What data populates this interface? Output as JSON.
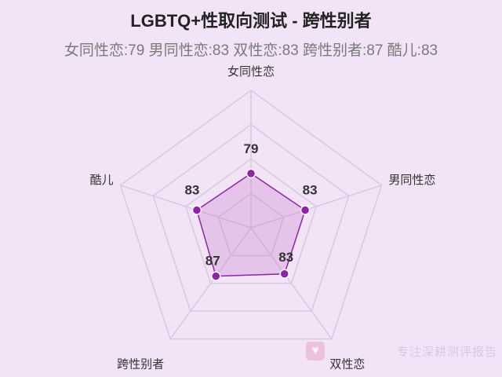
{
  "chart_data": {
    "type": "radar",
    "title": "LGBTQ+性取向测试 - 跨性别者",
    "subtitle": "女同性恋:79 男同性恋:83 双性恋:83 跨性别者:87 酷儿:83",
    "categories": [
      "女同性恋",
      "男同性恋",
      "双性恋",
      "跨性别者",
      "酷儿"
    ],
    "series": [
      {
        "values": [
          79,
          83,
          83,
          87,
          83
        ],
        "color": "#8e24aa",
        "fill": "rgba(186, 104, 200, 0.25)"
      }
    ],
    "value_labels": [
      "79",
      "83",
      "83",
      "87",
      "83"
    ],
    "max": 200,
    "rings": 4,
    "grid_color": "#dbc7e0"
  },
  "watermark": {
    "icon": "heart-icon",
    "icon_glyph": "♥",
    "text": "专注深耕测评报告"
  }
}
